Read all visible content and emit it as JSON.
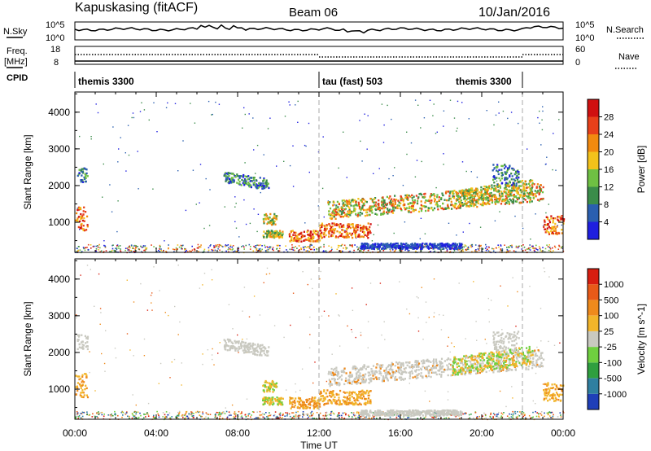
{
  "header": {
    "station": "Kapuskasing (fitACF)",
    "beam": "Beam 06",
    "date": "10/Jan/2016"
  },
  "strip_labels": {
    "nsky": "N.Sky",
    "nsky_hi": "10^5",
    "nsky_lo": "10^0",
    "nsearch_hi": "10^5",
    "nsearch_lo": "10^0",
    "nsearch": "N.Search",
    "freq": "Freq.",
    "freq_unit": "[MHz]",
    "freq_hi": "18",
    "freq_lo": "8",
    "nave_hi": "60",
    "nave_lo": "0",
    "nave": "Nave",
    "cpid": "CPID"
  },
  "cpid_segments": [
    {
      "label": "themis 3300",
      "start_h": 0,
      "end_h": 12
    },
    {
      "label": "tau (fast) 503",
      "start_h": 12,
      "end_h": 22
    },
    {
      "label": "themis 3300",
      "start_h": 22,
      "end_h": 24
    }
  ],
  "chart_data": [
    {
      "type": "heatmap",
      "quantity": "Power",
      "ylabel": "Slant Range [km]",
      "yticks": [
        1000,
        2000,
        3000,
        4000
      ],
      "ylim": [
        180,
        4550
      ],
      "x_range_h": [
        0,
        24
      ],
      "xticks": [
        "00:00",
        "04:00",
        "08:00",
        "12:00",
        "16:00",
        "20:00",
        "00:00"
      ],
      "colorbar": {
        "label": "Power [dB]",
        "ticks": [
          "4",
          "8",
          "12",
          "16",
          "20",
          "24",
          "28"
        ],
        "colors": [
          "#1f1fe0",
          "#2a5fb0",
          "#3b8c4a",
          "#6fc043",
          "#f3c21b",
          "#f28a0f",
          "#e8401a",
          "#d01010"
        ]
      }
    },
    {
      "type": "heatmap",
      "quantity": "Velocity",
      "ylabel": "Slant Range [km]",
      "yticks": [
        1000,
        2000,
        3000,
        4000
      ],
      "ylim": [
        180,
        4550
      ],
      "x_range_h": [
        0,
        24
      ],
      "xticks": [
        "00:00",
        "04:00",
        "08:00",
        "12:00",
        "16:00",
        "20:00",
        "00:00"
      ],
      "xlabel": "Time UT",
      "colorbar": {
        "label": "Velocity [m s^-1]",
        "ticks": [
          "1000",
          "500",
          "100",
          "25",
          "-25",
          "-100",
          "-500",
          "-1000"
        ],
        "colors": [
          "#1f3fb8",
          "#2f7fa0",
          "#2f9f3f",
          "#6fcf3f",
          "#c9c9c0",
          "#f2b52a",
          "#ee8a1c",
          "#e85a18",
          "#d81e10"
        ]
      }
    }
  ]
}
